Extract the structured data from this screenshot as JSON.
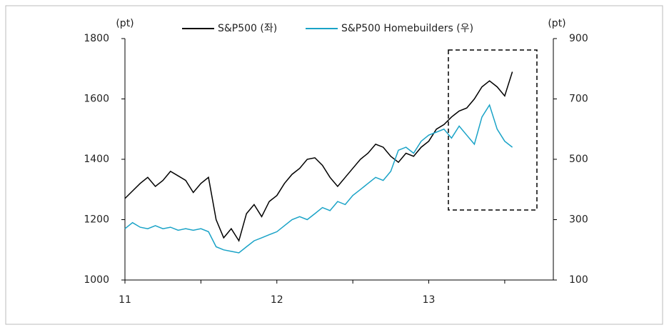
{
  "chart_data": {
    "type": "line",
    "y_unit": "(pt)",
    "y2_unit": "(pt)",
    "x": [
      11.0,
      11.05,
      11.1,
      11.15,
      11.2,
      11.25,
      11.3,
      11.35,
      11.4,
      11.45,
      11.5,
      11.55,
      11.6,
      11.65,
      11.7,
      11.75,
      11.8,
      11.85,
      11.9,
      11.95,
      12.0,
      12.05,
      12.1,
      12.15,
      12.2,
      12.25,
      12.3,
      12.35,
      12.4,
      12.45,
      12.5,
      12.55,
      12.6,
      12.65,
      12.7,
      12.75,
      12.8,
      12.85,
      12.9,
      12.95,
      13.0,
      13.05,
      13.1,
      13.15,
      13.2,
      13.25,
      13.3,
      13.35,
      13.4,
      13.45,
      13.5,
      13.55
    ],
    "series": [
      {
        "name": "S&P500 (좌)",
        "color": "#000000",
        "axis": "y",
        "values": [
          1270,
          1295,
          1320,
          1340,
          1310,
          1330,
          1360,
          1345,
          1330,
          1290,
          1320,
          1340,
          1200,
          1140,
          1170,
          1130,
          1220,
          1250,
          1210,
          1260,
          1280,
          1320,
          1350,
          1370,
          1400,
          1405,
          1380,
          1340,
          1310,
          1340,
          1370,
          1400,
          1420,
          1450,
          1440,
          1410,
          1390,
          1420,
          1410,
          1440,
          1460,
          1500,
          1515,
          1540,
          1560,
          1570,
          1600,
          1640,
          1660,
          1640,
          1610,
          1690
        ]
      },
      {
        "name": "S&P500 Homebuilders (우)",
        "color": "#1aa3c7",
        "axis": "y2",
        "values": [
          270,
          290,
          275,
          270,
          280,
          270,
          275,
          265,
          270,
          265,
          270,
          260,
          210,
          200,
          195,
          190,
          210,
          230,
          240,
          250,
          260,
          280,
          300,
          310,
          300,
          320,
          340,
          330,
          360,
          350,
          380,
          400,
          420,
          440,
          430,
          460,
          530,
          540,
          520,
          560,
          580,
          590,
          600,
          570,
          610,
          580,
          550,
          640,
          680,
          600,
          560,
          540
        ]
      }
    ],
    "xlim": [
      11,
      13.82
    ],
    "xticks": [
      11,
      12,
      13
    ],
    "xminor_ticks": [
      11.5,
      12.5,
      13.5
    ],
    "ylim": [
      1000,
      1800
    ],
    "yticks": [
      1000,
      1200,
      1400,
      1600,
      1800
    ],
    "y2lim": [
      100,
      900
    ],
    "y2ticks": [
      100,
      300,
      500,
      700,
      900
    ],
    "grid": false,
    "legend": "top"
  }
}
